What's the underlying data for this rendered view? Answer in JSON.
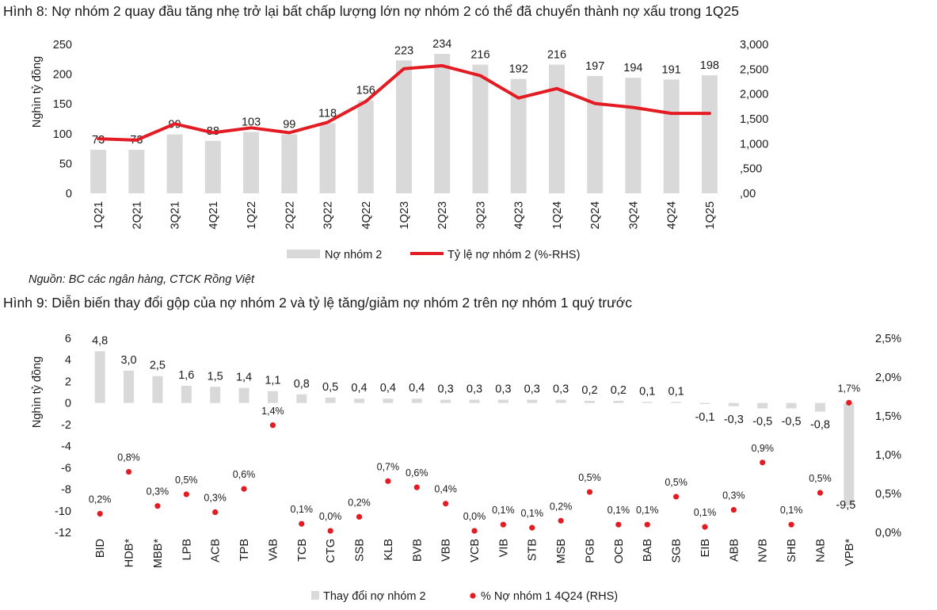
{
  "figure8": {
    "title": "Hình 8: Nợ nhóm 2 quay đầu tăng nhẹ trở lại bất chấp lượng lớn nợ nhóm 2 có thể đã chuyển thành nợ xấu trong 1Q25",
    "source": "Nguồn: BC các ngân hàng, CTCK Rồng Việt"
  },
  "figure9": {
    "title": "Hình 9: Diễn biến thay đổi gộp của nợ nhóm 2 và tỷ lệ tăng/giảm nợ nhóm 2 trên nợ nhóm 1 quý trước"
  },
  "chart_data": [
    {
      "type": "bar+line",
      "ylabel": "Nghìn tỷ đồng",
      "ylim": [
        0,
        250
      ],
      "y_ticks": [
        "0",
        "50",
        "100",
        "150",
        "200",
        "250"
      ],
      "y2lim": [
        0,
        3
      ],
      "y2_ticks": [
        ",00",
        ",500",
        "1,000",
        "1,500",
        "2,000",
        "2,500",
        "3,000"
      ],
      "categories": [
        "1Q21",
        "2Q21",
        "3Q21",
        "4Q21",
        "1Q22",
        "2Q22",
        "3Q22",
        "4Q22",
        "1Q23",
        "2Q23",
        "3Q23",
        "4Q23",
        "1Q24",
        "2Q24",
        "3Q24",
        "4Q24",
        "1Q25"
      ],
      "series": [
        {
          "name": "Nợ nhóm 2",
          "kind": "bar",
          "axis": "left",
          "color": "#d9d9d9",
          "values": [
            73,
            73,
            99,
            88,
            103,
            99,
            118,
            156,
            223,
            234,
            216,
            192,
            216,
            197,
            194,
            191,
            198
          ],
          "labels": [
            "73",
            "73",
            "99",
            "88",
            "103",
            "99",
            "118",
            "156",
            "223",
            "234",
            "216",
            "192",
            "216",
            "197",
            "194",
            "191",
            "198"
          ]
        },
        {
          "name": "Tỷ lệ nợ nhóm 2 (%-RHS)",
          "kind": "line",
          "axis": "right",
          "color": "#e31b23",
          "values": [
            1.1,
            1.07,
            1.4,
            1.22,
            1.32,
            1.22,
            1.43,
            1.85,
            2.51,
            2.57,
            2.37,
            1.92,
            2.11,
            1.81,
            1.73,
            1.61,
            1.61
          ]
        }
      ],
      "legend_position": "bottom"
    },
    {
      "type": "bar+scatter",
      "ylabel": "Nghìn tỷ đồng",
      "ylim": [
        -12,
        6
      ],
      "y_ticks": [
        "-12",
        "-10",
        "-8",
        "-6",
        "-4",
        "-2",
        "0",
        "2",
        "4",
        "6"
      ],
      "y2lim": [
        0,
        2.5
      ],
      "y2_ticks": [
        "0,0%",
        "0,5%",
        "1,0%",
        "1,5%",
        "2,0%",
        "2,5%"
      ],
      "categories": [
        "BID",
        "HDB*",
        "MBB*",
        "LPB",
        "ACB",
        "TPB",
        "VAB",
        "TCB",
        "CTG",
        "SSB",
        "KLB",
        "BVB",
        "VBB",
        "VCB",
        "VIB",
        "STB",
        "MSB",
        "PGB",
        "OCB",
        "BAB",
        "SGB",
        "EIB",
        "ABB",
        "NVB",
        "SHB",
        "NAB",
        "VPB*"
      ],
      "series": [
        {
          "name": "Thay đổi nợ nhóm 2",
          "kind": "bar",
          "axis": "left",
          "color": "#d9d9d9",
          "values": [
            4.8,
            3.0,
            2.5,
            1.6,
            1.5,
            1.4,
            1.1,
            0.8,
            0.5,
            0.4,
            0.4,
            0.4,
            0.3,
            0.3,
            0.3,
            0.3,
            0.3,
            0.2,
            0.2,
            0.1,
            0.1,
            -0.1,
            -0.3,
            -0.5,
            -0.5,
            -0.8,
            -9.5
          ],
          "labels": [
            "4,8",
            "3,0",
            "2,5",
            "1,6",
            "1,5",
            "1,4",
            "1,1",
            "0,8",
            "0,5",
            "0,4",
            "0,4",
            "0,4",
            "0,3",
            "0,3",
            "0,3",
            "0,3",
            "0,3",
            "0,2",
            "0,2",
            "0,1",
            "0,1",
            "-0,1",
            "-0,3",
            "-0,5",
            "-0,5",
            "-0,8",
            "-9,5"
          ]
        },
        {
          "name": "% Nợ nhóm 1 4Q24 (RHS)",
          "kind": "scatter",
          "axis": "right",
          "color": "#e31b23",
          "values": [
            0.24,
            0.78,
            0.34,
            0.49,
            0.26,
            0.56,
            1.38,
            0.11,
            0.02,
            0.2,
            0.66,
            0.58,
            0.37,
            0.02,
            0.1,
            0.06,
            0.15,
            0.52,
            0.1,
            0.1,
            0.46,
            0.07,
            0.29,
            0.9,
            0.1,
            0.51,
            1.67
          ],
          "labels": [
            "0,2%",
            "0,8%",
            "0,3%",
            "0,5%",
            "0,3%",
            "0,6%",
            "1,4%",
            "0,1%",
            "0,0%",
            "0,2%",
            "0,7%",
            "0,6%",
            "0,4%",
            "0,0%",
            "0,1%",
            "0,1%",
            "0,2%",
            "0,5%",
            "0,1%",
            "0,1%",
            "0,5%",
            "0,1%",
            "0,3%",
            "0,9%",
            "0,1%",
            "0,5%",
            "1,7%"
          ]
        }
      ],
      "legend_position": "bottom"
    }
  ]
}
